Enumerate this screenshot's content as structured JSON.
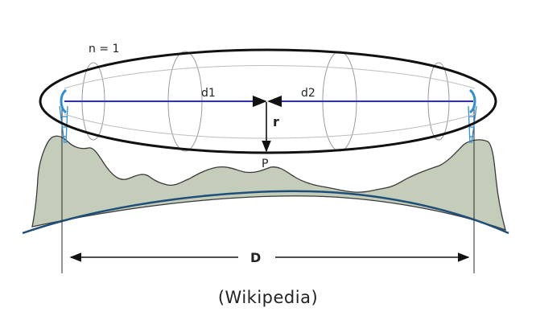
{
  "diagram": {
    "labels": {
      "zone": "n = 1",
      "d1": "d1",
      "d2": "d2",
      "radius": "r",
      "point": "P",
      "distance": "D"
    },
    "caption": "(Wikipedia)",
    "colors": {
      "terrain_fill": "#c3cdb9",
      "terrain_stroke": "#3a3a3a",
      "earth_curve": "#1f4e79",
      "path_line": "#2b2be0",
      "ellipse_stroke": "#111111",
      "section_stroke": "#9a9a9a",
      "antenna": "#2e8fd6",
      "text": "#222222"
    }
  }
}
